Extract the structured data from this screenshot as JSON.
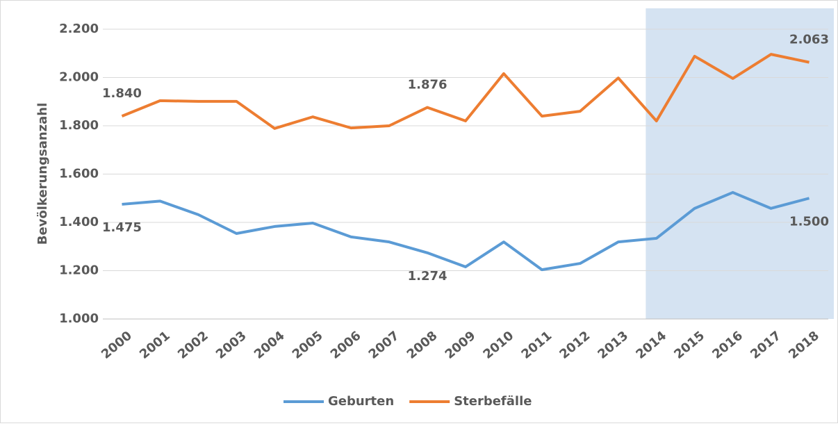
{
  "chart_data": {
    "type": "line",
    "y_axis_label": "Bevölkerungsanzahl",
    "categories": [
      "2000",
      "2001",
      "2002",
      "2003",
      "2004",
      "2005",
      "2006",
      "2007",
      "2008",
      "2009",
      "2010",
      "2011",
      "2012",
      "2013",
      "2014",
      "2015",
      "2016",
      "2017",
      "2018"
    ],
    "series": [
      {
        "name": "Geburten",
        "color": "#5b9bd5",
        "values": [
          1475,
          1488,
          1432,
          1354,
          1383,
          1397,
          1340,
          1319,
          1274,
          1216,
          1319,
          1204,
          1230,
          1319,
          1334,
          1458,
          1524,
          1458,
          1500
        ],
        "value_labels": [
          "1.475",
          null,
          null,
          null,
          null,
          null,
          null,
          null,
          "1.274",
          null,
          null,
          null,
          null,
          null,
          null,
          null,
          null,
          null,
          "1.500"
        ]
      },
      {
        "name": "Sterbefälle",
        "color": "#ed7d31",
        "values": [
          1840,
          1904,
          1901,
          1901,
          1789,
          1837,
          1791,
          1800,
          1876,
          1820,
          2016,
          1840,
          1860,
          1998,
          1820,
          2088,
          1996,
          2096,
          2063
        ],
        "value_labels": [
          "1.840",
          null,
          null,
          null,
          null,
          null,
          null,
          null,
          "1.876",
          null,
          null,
          null,
          null,
          null,
          null,
          null,
          null,
          null,
          "2.063"
        ]
      }
    ],
    "ylim": [
      1000,
      2200
    ],
    "yticks": [
      {
        "value": 1000,
        "label": "1.000"
      },
      {
        "value": 1200,
        "label": "1.200"
      },
      {
        "value": 1400,
        "label": "1.400"
      },
      {
        "value": 1600,
        "label": "1.600"
      },
      {
        "value": 1800,
        "label": "1.800"
      },
      {
        "value": 2000,
        "label": "2.000"
      },
      {
        "value": 2200,
        "label": "2.200"
      }
    ],
    "grid": true,
    "highlight": [
      "2014",
      "2018"
    ],
    "highlight_color": "#d5e3f2",
    "legend": "bottom"
  }
}
